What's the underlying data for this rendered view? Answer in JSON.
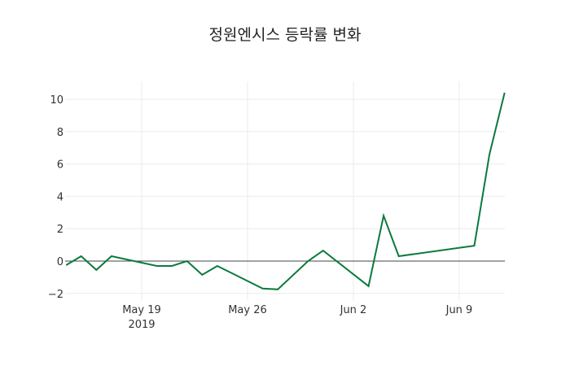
{
  "chart_data": {
    "type": "line",
    "title": "정원엔시스 등락률 변화",
    "xlabel": "",
    "ylabel": "",
    "x": [
      "2019-05-14",
      "2019-05-15",
      "2019-05-16",
      "2019-05-17",
      "2019-05-20",
      "2019-05-21",
      "2019-05-22",
      "2019-05-23",
      "2019-05-24",
      "2019-05-27",
      "2019-05-28",
      "2019-05-30",
      "2019-05-31",
      "2019-06-03",
      "2019-06-04",
      "2019-06-05",
      "2019-06-10",
      "2019-06-11",
      "2019-06-12"
    ],
    "series": [
      {
        "name": "등락률",
        "color": "#0b7a3e",
        "values": [
          -0.25,
          0.3,
          -0.55,
          0.3,
          -0.3,
          -0.3,
          0.0,
          -0.85,
          -0.3,
          -1.7,
          -1.75,
          0.0,
          0.65,
          -1.55,
          2.8,
          0.3,
          0.95,
          6.6,
          10.4
        ]
      }
    ],
    "x_ticks": [
      {
        "date": "2019-05-19",
        "label": "May 19",
        "sublabel": "2019"
      },
      {
        "date": "2019-05-26",
        "label": "May 26",
        "sublabel": ""
      },
      {
        "date": "2019-06-02",
        "label": "Jun 2",
        "sublabel": ""
      },
      {
        "date": "2019-06-09",
        "label": "Jun 9",
        "sublabel": ""
      }
    ],
    "y_ticks": [
      -2,
      0,
      2,
      4,
      6,
      8,
      10
    ],
    "ylim": [
      -2.3,
      11.2
    ],
    "grid": true,
    "zero_line": true,
    "legend": "none"
  }
}
